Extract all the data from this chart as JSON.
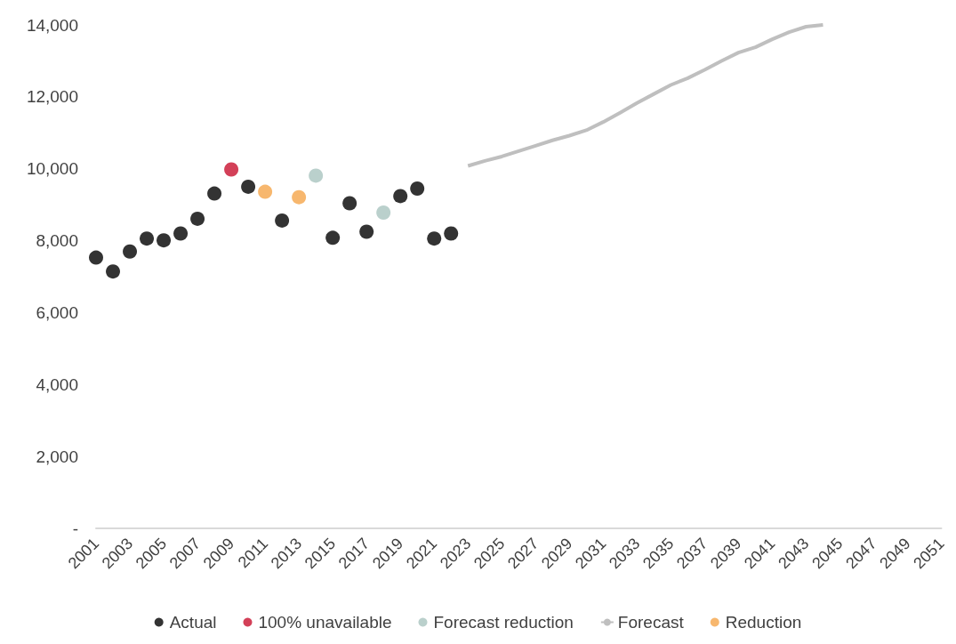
{
  "chart_data": {
    "type": "scatter",
    "categories": [
      "2001",
      null,
      "2003",
      null,
      "2005",
      null,
      "2007",
      null,
      "2009",
      null,
      "2011",
      null,
      "2013",
      null,
      "2015",
      null,
      "2017",
      null,
      "2019",
      null,
      "2021",
      null,
      "2023",
      null,
      "2025",
      null,
      "2027",
      null,
      "2029",
      null,
      "2031",
      null,
      "2033",
      null,
      "2035",
      null,
      "2037",
      null,
      "2039",
      null,
      "2041",
      null,
      "2043",
      null,
      "2045",
      null,
      "2047",
      null,
      "2049",
      null,
      "2051"
    ],
    "series": [
      {
        "name": "Actual",
        "color": "#000000",
        "values": [
          7530,
          7145,
          7700,
          8060,
          8010,
          8200,
          8610,
          9310,
          null,
          9500,
          null,
          8560,
          null,
          null,
          8080,
          9040,
          8250,
          null,
          9240,
          9450,
          8060,
          8200,
          null,
          null,
          null,
          null,
          null,
          null,
          null,
          null,
          null,
          null,
          null,
          null,
          null,
          null,
          null,
          null,
          null,
          null,
          null,
          null,
          null,
          null,
          null,
          null,
          null,
          null,
          null,
          null,
          null
        ]
      },
      {
        "name": "100% unavailable",
        "color": "#c8102e",
        "values": [
          null,
          null,
          null,
          null,
          null,
          null,
          null,
          null,
          9980,
          null,
          null,
          null,
          null,
          null,
          null,
          null,
          null,
          null,
          null,
          null,
          null,
          null,
          null,
          null,
          null,
          null,
          null,
          null,
          null,
          null,
          null,
          null,
          null,
          null,
          null,
          null,
          null,
          null,
          null,
          null,
          null,
          null,
          null,
          null,
          null,
          null,
          null,
          null,
          null,
          null,
          null
        ]
      },
      {
        "name": "Forecast reduction",
        "color": "#a9c4bf",
        "values": [
          null,
          null,
          null,
          null,
          null,
          null,
          null,
          null,
          null,
          null,
          null,
          null,
          null,
          9810,
          null,
          null,
          null,
          8780,
          null,
          null,
          null,
          null,
          null,
          null,
          null,
          null,
          null,
          null,
          null,
          null,
          null,
          null,
          null,
          null,
          null,
          null,
          null,
          null,
          null,
          null,
          null,
          null,
          null,
          null,
          null,
          null,
          null,
          null,
          null,
          null,
          null
        ]
      },
      {
        "name": "Forecast",
        "type": "line",
        "marker": "none",
        "color": "#bfbfbf",
        "values": [
          null,
          null,
          null,
          null,
          null,
          null,
          null,
          null,
          null,
          null,
          null,
          null,
          null,
          null,
          null,
          null,
          null,
          null,
          null,
          null,
          null,
          null,
          10080,
          10220,
          10340,
          10490,
          10640,
          10790,
          10920,
          11070,
          11300,
          11560,
          11830,
          12080,
          12330,
          12520,
          12750,
          13000,
          13230,
          13380,
          13600,
          13800,
          13950,
          14000,
          null,
          null,
          null,
          null,
          null,
          null,
          null
        ]
      },
      {
        "name": "Reduction",
        "color": "#f5a54a",
        "values": [
          null,
          null,
          null,
          null,
          null,
          null,
          null,
          null,
          null,
          null,
          9360,
          null,
          9210,
          null,
          null,
          null,
          null,
          null,
          null,
          null,
          null,
          null,
          null,
          null,
          null,
          null,
          null,
          null,
          null,
          null,
          null,
          null,
          null,
          null,
          null,
          null,
          null,
          null,
          null,
          null,
          null,
          null,
          null,
          null,
          null,
          null,
          null,
          null,
          null,
          null,
          null
        ]
      }
    ],
    "ylim": [
      0,
      14000
    ],
    "yticks": [
      {
        "value": 0,
        "label": "-"
      },
      {
        "value": 2000,
        "label": "2,000"
      },
      {
        "value": 4000,
        "label": "4,000"
      },
      {
        "value": 6000,
        "label": "6,000"
      },
      {
        "value": 8000,
        "label": "8,000"
      },
      {
        "value": 10000,
        "label": "10,000"
      },
      {
        "value": 12000,
        "label": "12,000"
      },
      {
        "value": 14000,
        "label": "14,000"
      }
    ],
    "grid": false,
    "legend": "bottom",
    "marker": "circle"
  }
}
